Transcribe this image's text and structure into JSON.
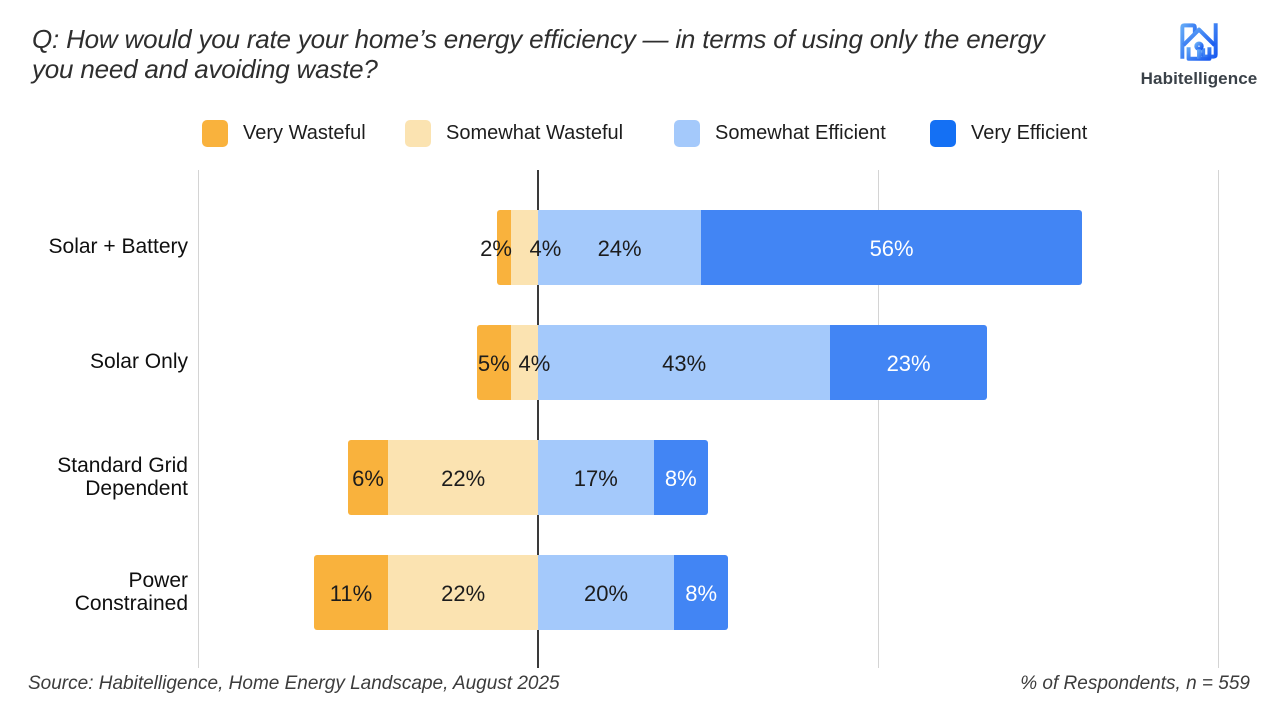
{
  "title": "Q: How would you rate your home’s energy efficiency — in terms of using only the energy you need and avoiding waste?",
  "logo": {
    "name": "Habitelligence",
    "icon": "habitelligence-house-h-icon",
    "accent_color": "#1b6ef3"
  },
  "legend": [
    {
      "label": "Very Wasteful",
      "swatch": "#f9b23d"
    },
    {
      "label": "Somewhat Wasteful",
      "swatch": "#fbe3b1"
    },
    {
      "label": "Somewhat Efficient",
      "swatch": "#a4c9fb"
    },
    {
      "label": "Very Efficient",
      "swatch": "#1470f4"
    }
  ],
  "chart_data": {
    "type": "bar",
    "variant": "diverging-stacked-horizontal",
    "unit": "%",
    "title": "Q: How would you rate your home’s energy efficiency — in terms of using only the energy you need and avoiding waste?",
    "categories": [
      "Solar + Battery",
      "Solar Only",
      "Standard Grid Dependent",
      "Power Constrained"
    ],
    "series": [
      {
        "name": "Very Wasteful",
        "color": "#f9b23d",
        "side": "negative",
        "values": [
          2,
          5,
          6,
          11
        ]
      },
      {
        "name": "Somewhat Wasteful",
        "color": "#fbe3b1",
        "side": "negative",
        "values": [
          4,
          4,
          22,
          22
        ]
      },
      {
        "name": "Somewhat Efficient",
        "color": "#a4c9fb",
        "side": "positive",
        "values": [
          24,
          43,
          17,
          20
        ]
      },
      {
        "name": "Very Efficient",
        "color": "#4285f4",
        "side": "positive",
        "values": [
          56,
          23,
          8,
          8
        ]
      }
    ],
    "data_labels_format": "{value}%",
    "axis_range_pct": [
      -50,
      100
    ],
    "gridlines_pct": [
      -50,
      0,
      50,
      100
    ],
    "axis_tick_labels_shown": false,
    "grid": "vertical-only",
    "legend_position": "top"
  },
  "footer": {
    "source": "Source: Habitelligence, Home Energy Landscape, August 2025",
    "note": "% of Respondents, n = 559"
  }
}
